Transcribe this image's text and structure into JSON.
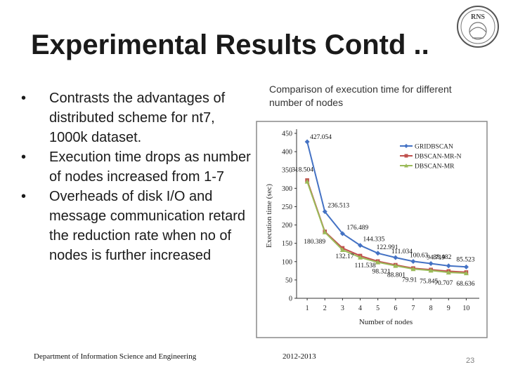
{
  "slide": {
    "title": "Experimental Results Contd ..",
    "bullets": [
      "Contrasts the advantages of distributed scheme for nt7, 1000k dataset.",
      "Execution time drops as number of nodes increased from 1-7",
      "Overheads of disk I/O and message communication retard the reduction rate when no of nodes is further increased"
    ],
    "chart_caption": "Comparison of execution time for different number of nodes",
    "footer_left": "Department of Information Science and Engineering",
    "footer_mid": "2012-2013",
    "page_number": "23",
    "logo_text": "RNS"
  },
  "chart_data": {
    "type": "line",
    "x": [
      1,
      2,
      3,
      4,
      5,
      6,
      7,
      8,
      9,
      10
    ],
    "xlabel": "Number of nodes",
    "ylabel": "Execution time (sec)",
    "ylim": [
      0,
      450
    ],
    "yticks": [
      0,
      50,
      100,
      150,
      200,
      250,
      300,
      350,
      400,
      450
    ],
    "legend_position": "top-right",
    "series": [
      {
        "name": "GRIDBSCAN",
        "color": "#4472c4",
        "marker": "diamond",
        "values": [
          427.054,
          236.513,
          176.489,
          144.335,
          122.991,
          111.034,
          100.63,
          94.719,
          88.482,
          85.523
        ]
      },
      {
        "name": "DBSCAN-MR-N",
        "color": "#c0504d",
        "marker": "square",
        "values": [
          322,
          182,
          137,
          116,
          101,
          91,
          82,
          78,
          74,
          71
        ]
      },
      {
        "name": "DBSCAN-MR",
        "color": "#9bbb59",
        "marker": "triangle",
        "values": [
          318.504,
          180.389,
          132.17,
          111.538,
          98.321,
          88.801,
          79.91,
          75.845,
          70.707,
          68.636
        ]
      }
    ],
    "annotations": [
      {
        "text": "427.054",
        "x": 1,
        "y": 427.054
      },
      {
        "text": "236.513",
        "x": 2,
        "y": 236.513
      },
      {
        "text": "176.489",
        "x": 3,
        "y": 176.489
      },
      {
        "text": "144.335",
        "x": 4,
        "y": 144.335
      },
      {
        "text": "122.991",
        "x": 5,
        "y": 122.991
      },
      {
        "text": "111.034",
        "x": 6,
        "y": 111.034
      },
      {
        "text": "100.63",
        "x": 7,
        "y": 100.63
      },
      {
        "text": "94.719",
        "x": 8,
        "y": 94.719
      },
      {
        "text": "88.482",
        "x": 9,
        "y": 88.482
      },
      {
        "text": "85.523",
        "x": 10,
        "y": 85.523
      },
      {
        "text": "318.504",
        "x": 1,
        "y": 318.504
      },
      {
        "text": "180.389",
        "x": 2,
        "y": 180.389
      },
      {
        "text": "132.17",
        "x": 3,
        "y": 132.17
      },
      {
        "text": "111.538",
        "x": 4,
        "y": 111.538
      },
      {
        "text": "98.321",
        "x": 5,
        "y": 98.321
      },
      {
        "text": "88.801",
        "x": 6,
        "y": 88.801
      },
      {
        "text": "79.91",
        "x": 7,
        "y": 79.91
      },
      {
        "text": "75.845",
        "x": 8,
        "y": 75.845
      },
      {
        "text": "70.707",
        "x": 9,
        "y": 70.707
      },
      {
        "text": "68.636",
        "x": 10,
        "y": 68.636
      }
    ]
  }
}
